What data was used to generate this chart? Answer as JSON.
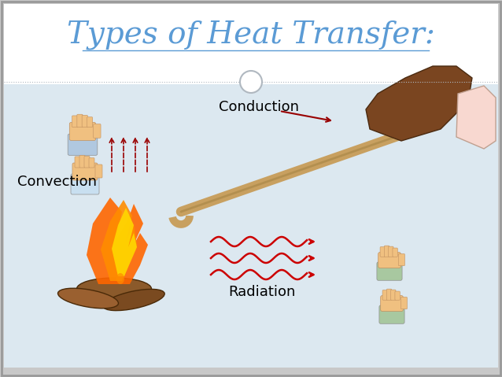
{
  "title": "Types of Heat Transfer:",
  "title_color": "#5b9bd5",
  "title_fontsize": 28,
  "bg_outer": "#c8c8c8",
  "bg_header": "#ffffff",
  "bg_content": "#dce8f0",
  "conduction_label": "Conduction",
  "convection_label": "Convection",
  "radiation_label": "Radiation",
  "label_fontsize": 13,
  "arrow_color": "#990000",
  "wave_color": "#cc0000",
  "rod_color": "#c8a060",
  "rod_dark": "#a08040",
  "skin_color": "#f0c080",
  "sleeve_blue": "#b0c8e0",
  "sleeve_green": "#a8c8a0",
  "glove_color": "#7a4520",
  "log_color": "#8b5a2b",
  "flame1": "#ff6600",
  "flame2": "#ff8c00",
  "flame3": "#ffd700",
  "divider_color": "#b0b8c0",
  "circle_fill": "#ffffff",
  "figwidth": 6.38,
  "figheight": 4.79,
  "dpi": 100
}
